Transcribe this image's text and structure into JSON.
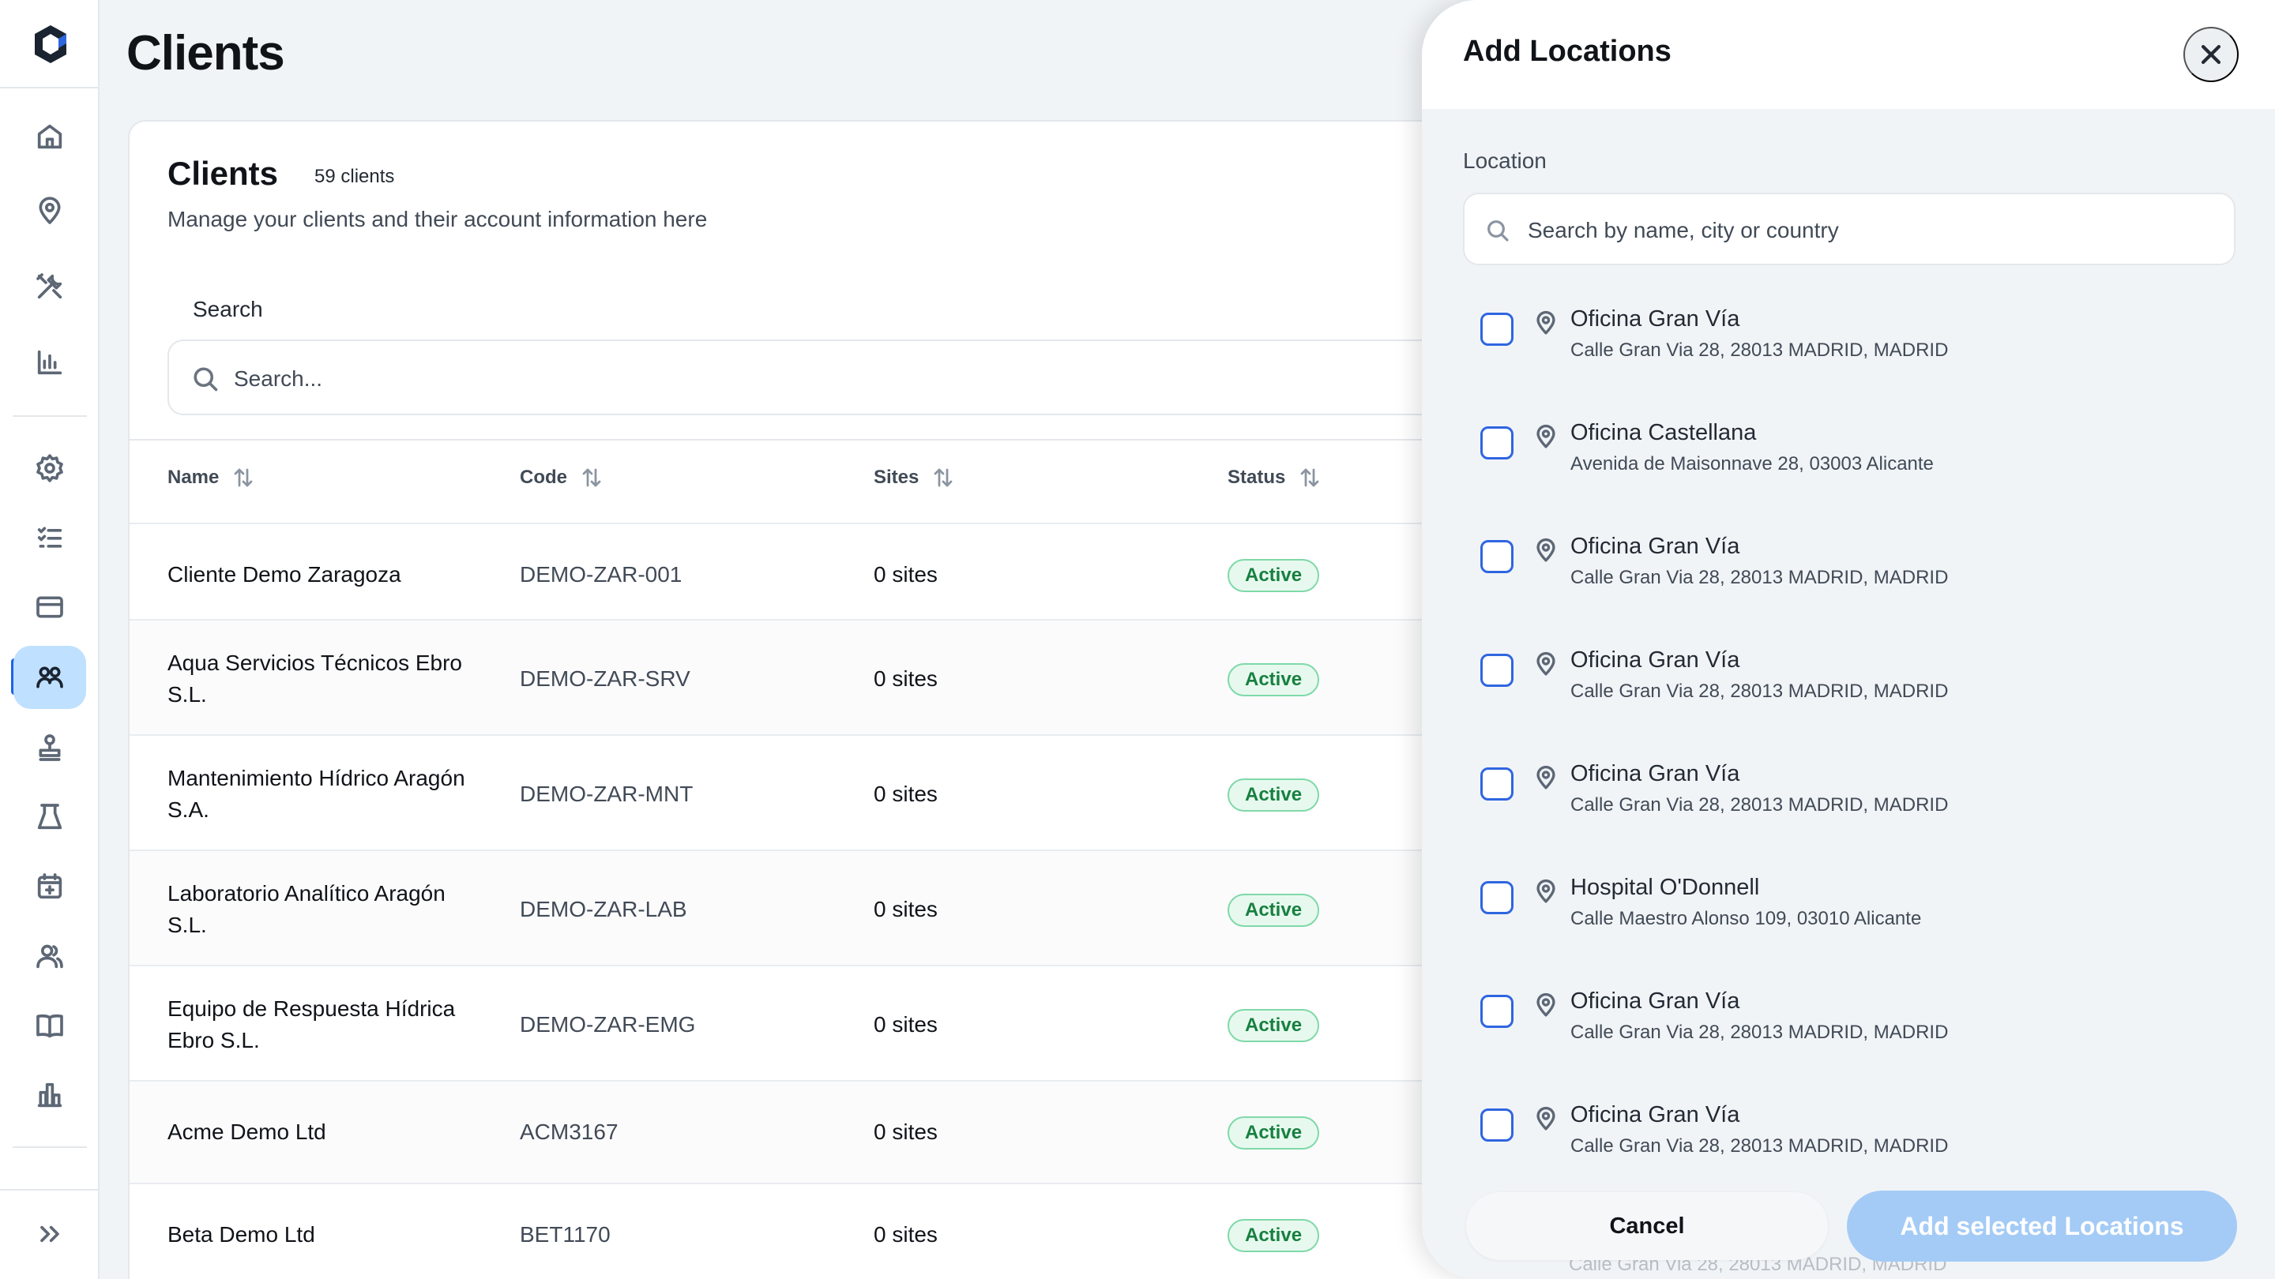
{
  "page": {
    "title": "Clients"
  },
  "sidebar": {
    "logo": "brand-logo",
    "items": [
      {
        "icon": "home-icon"
      },
      {
        "icon": "map-pin-icon"
      },
      {
        "icon": "tools-icon"
      },
      {
        "icon": "bar-chart-icon"
      },
      {
        "icon": "gear-icon"
      },
      {
        "icon": "checklist-icon"
      },
      {
        "icon": "credit-card-icon"
      },
      {
        "icon": "clients-icon",
        "active": true
      },
      {
        "icon": "stamp-icon"
      },
      {
        "icon": "flask-icon"
      },
      {
        "icon": "calendar-plus-icon"
      },
      {
        "icon": "users-icon"
      },
      {
        "icon": "book-icon"
      },
      {
        "icon": "building-chart-icon"
      }
    ],
    "expand_icon": "chevrons-right-icon"
  },
  "card": {
    "title": "Clients",
    "count": "59 clients",
    "subtitle": "Manage your clients and their account information here",
    "search_label": "Search",
    "search_placeholder": "Search..."
  },
  "table": {
    "columns": [
      "Name",
      "Code",
      "Sites",
      "Status"
    ],
    "rows": [
      {
        "name": "Cliente Demo Zaragoza",
        "code": "DEMO-ZAR-001",
        "sites": "0 sites",
        "status": "Active"
      },
      {
        "name": "Aqua Servicios Técnicos Ebro S.L.",
        "code": "DEMO-ZAR-SRV",
        "sites": "0 sites",
        "status": "Active"
      },
      {
        "name": "Mantenimiento Hídrico Aragón S.A.",
        "code": "DEMO-ZAR-MNT",
        "sites": "0 sites",
        "status": "Active"
      },
      {
        "name": "Laboratorio Analítico Aragón S.L.",
        "code": "DEMO-ZAR-LAB",
        "sites": "0 sites",
        "status": "Active"
      },
      {
        "name": "Equipo de Respuesta Hídrica Ebro S.L.",
        "code": "DEMO-ZAR-EMG",
        "sites": "0 sites",
        "status": "Active"
      },
      {
        "name": "Acme Demo Ltd",
        "code": "ACM3167",
        "sites": "0 sites",
        "status": "Active"
      },
      {
        "name": "Beta Demo Ltd",
        "code": "BET1170",
        "sites": "0 sites",
        "status": "Active"
      }
    ]
  },
  "panel": {
    "title": "Add Locations",
    "location_label": "Location",
    "search_placeholder": "Search by name, city or country",
    "locations": [
      {
        "name": "Oficina Gran Vía",
        "address": "Calle Gran Via 28, 28013 MADRID, MADRID"
      },
      {
        "name": "Oficina Castellana",
        "address": "Avenida de Maisonnave 28, 03003 Alicante"
      },
      {
        "name": "Oficina Gran Vía",
        "address": "Calle Gran Via 28, 28013 MADRID, MADRID"
      },
      {
        "name": "Oficina Gran Vía",
        "address": "Calle Gran Via 28, 28013 MADRID, MADRID"
      },
      {
        "name": "Oficina Gran Vía",
        "address": "Calle Gran Via 28, 28013 MADRID, MADRID"
      },
      {
        "name": "Hospital O'Donnell",
        "address": "Calle Maestro Alonso 109, 03010 Alicante"
      },
      {
        "name": "Oficina Gran Vía",
        "address": "Calle Gran Via 28, 28013 MADRID, MADRID"
      },
      {
        "name": "Oficina Gran Vía",
        "address": "Calle Gran Via 28, 28013 MADRID, MADRID"
      }
    ],
    "footer_ghost": "Calle Gran Via 28, 28013 MADRID, MADRID",
    "cancel_label": "Cancel",
    "add_label": "Add selected Locations"
  },
  "colors": {
    "accent": "#1e63e9",
    "active_nav_bg": "#bfe0ff",
    "status_active_text": "#17803f",
    "status_active_bg": "#e7f9ef",
    "add_button_disabled": "#a4cbf6"
  }
}
